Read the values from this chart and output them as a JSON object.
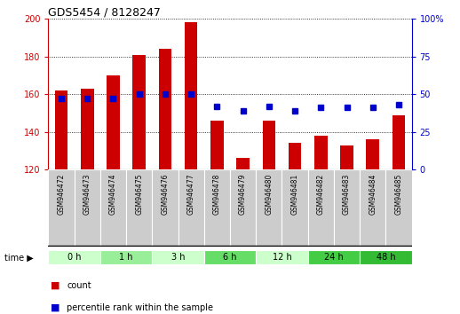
{
  "title": "GDS5454 / 8128247",
  "samples": [
    "GSM946472",
    "GSM946473",
    "GSM946474",
    "GSM946475",
    "GSM946476",
    "GSM946477",
    "GSM946478",
    "GSM946479",
    "GSM946480",
    "GSM946481",
    "GSM946482",
    "GSM946483",
    "GSM946484",
    "GSM946485"
  ],
  "count_values": [
    162,
    163,
    170,
    181,
    184,
    198,
    146,
    126,
    146,
    134,
    138,
    133,
    136,
    149
  ],
  "percentile_values": [
    47,
    47,
    47,
    50,
    50,
    50,
    42,
    39,
    42,
    39,
    41,
    41,
    41,
    43
  ],
  "ylim_left": [
    120,
    200
  ],
  "ylim_right": [
    0,
    100
  ],
  "yticks_left": [
    120,
    140,
    160,
    180,
    200
  ],
  "yticks_right": [
    0,
    25,
    50,
    75,
    100
  ],
  "bar_color": "#cc0000",
  "dot_color": "#0000cc",
  "time_groups": [
    {
      "label": "0 h",
      "indices": [
        0,
        1
      ],
      "color": "#ccffcc"
    },
    {
      "label": "1 h",
      "indices": [
        2,
        3
      ],
      "color": "#99ee99"
    },
    {
      "label": "3 h",
      "indices": [
        4,
        5
      ],
      "color": "#ccffcc"
    },
    {
      "label": "6 h",
      "indices": [
        6,
        7
      ],
      "color": "#66dd66"
    },
    {
      "label": "12 h",
      "indices": [
        8,
        9
      ],
      "color": "#ccffcc"
    },
    {
      "label": "24 h",
      "indices": [
        10,
        11
      ],
      "color": "#44cc44"
    },
    {
      "label": "48 h",
      "indices": [
        12,
        13
      ],
      "color": "#33bb33"
    }
  ],
  "sample_box_color": "#cccccc",
  "bar_color_red": "#cc0000",
  "dot_color_blue": "#0000cc",
  "grid_linestyle": "dotted",
  "grid_linewidth": 0.7,
  "bar_width": 0.5
}
